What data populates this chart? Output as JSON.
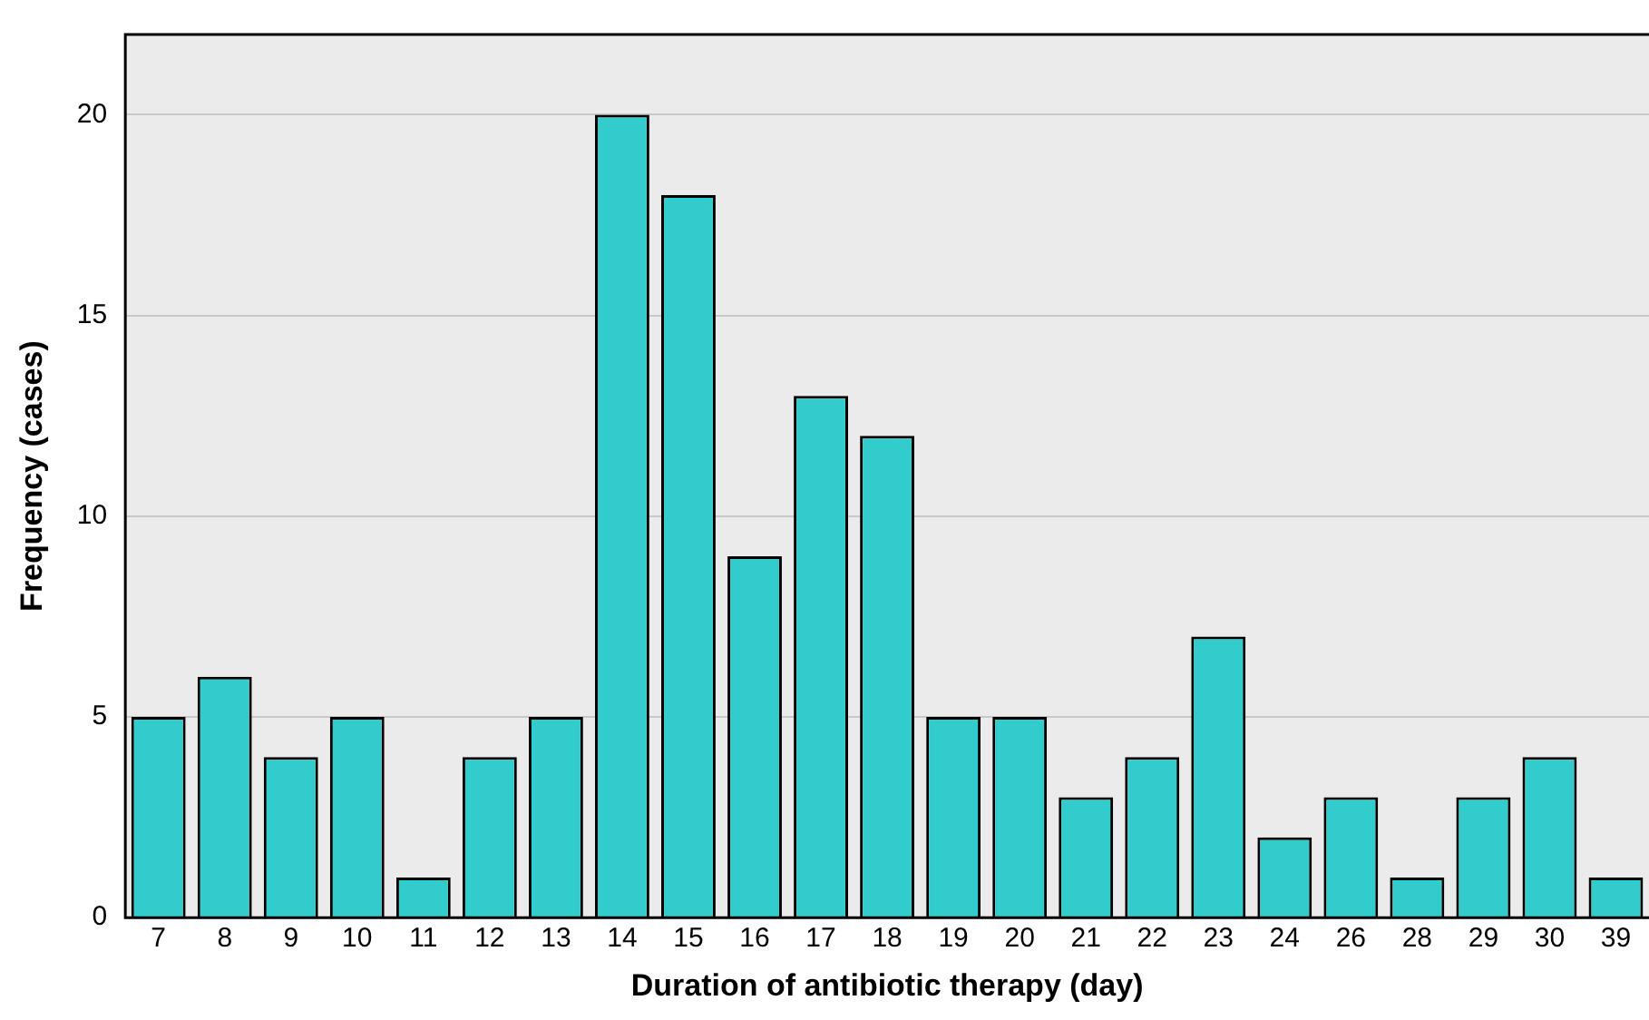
{
  "chart_data": {
    "type": "bar",
    "xlabel": "Duration of antibiotic therapy (day)",
    "ylabel": "Frequency (cases)",
    "categories": [
      "7",
      "8",
      "9",
      "10",
      "11",
      "12",
      "13",
      "14",
      "15",
      "16",
      "17",
      "18",
      "19",
      "20",
      "21",
      "22",
      "23",
      "24",
      "26",
      "28",
      "29",
      "30",
      "39"
    ],
    "values": [
      5,
      6,
      4,
      5,
      1,
      4,
      5,
      20,
      18,
      9,
      13,
      12,
      5,
      5,
      3,
      4,
      7,
      2,
      3,
      1,
      3,
      4,
      1
    ],
    "color": "#33cccc",
    "ylim": [
      0,
      22
    ],
    "yticks": [
      0,
      5,
      10,
      15,
      20
    ],
    "grid": "y",
    "legend": false
  }
}
